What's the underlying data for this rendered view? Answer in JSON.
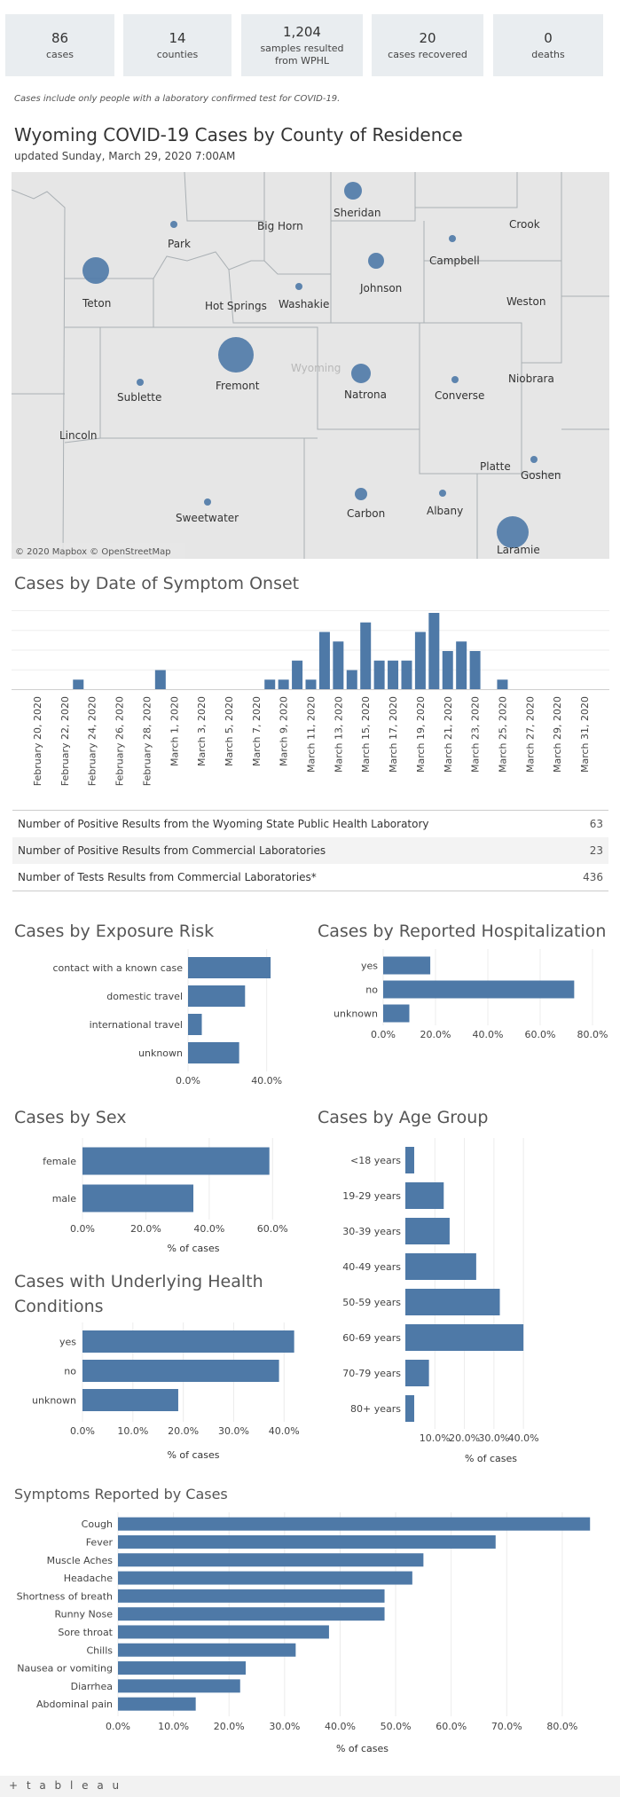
{
  "kpis": [
    {
      "value": "86",
      "label": "cases"
    },
    {
      "value": "14",
      "label": "counties"
    },
    {
      "value": "1,204",
      "label": "samples resulted from WPHL"
    },
    {
      "value": "20",
      "label": "cases recovered"
    },
    {
      "value": "0",
      "label": "deaths"
    }
  ],
  "note": "Cases include only people with a laboratory confirmed test for COVID-19.",
  "title": "Wyoming COVID-19 Cases by County of Residence",
  "updated": "updated Sunday, March 29, 2020 7:00AM",
  "map": {
    "state_label": "Wyoming",
    "attribution": "© 2020 Mapbox © OpenStreetMap",
    "counties": [
      {
        "name": "Sheridan"
      },
      {
        "name": "Crook"
      },
      {
        "name": "Big Horn"
      },
      {
        "name": "Park"
      },
      {
        "name": "Campbell"
      },
      {
        "name": "Johnson"
      },
      {
        "name": "Teton"
      },
      {
        "name": "Hot Springs"
      },
      {
        "name": "Washakie"
      },
      {
        "name": "Weston"
      },
      {
        "name": "Wyoming"
      },
      {
        "name": "Niobrara"
      },
      {
        "name": "Fremont"
      },
      {
        "name": "Natrona"
      },
      {
        "name": "Converse"
      },
      {
        "name": "Sublette"
      },
      {
        "name": "Lincoln"
      },
      {
        "name": "Platte"
      },
      {
        "name": "Goshen"
      },
      {
        "name": "Sweetwater"
      },
      {
        "name": "Carbon"
      },
      {
        "name": "Albany"
      },
      {
        "name": "Laramie"
      }
    ]
  },
  "onset": {
    "title": "Cases by Date of Symptom Onset",
    "labels": [
      "February 20, 2020",
      "February 22, 2020",
      "February 24, 2020",
      "February 26, 2020",
      "February 28, 2020",
      "March 1, 2020",
      "March 3, 2020",
      "March 5, 2020",
      "March 7, 2020",
      "March 9, 2020",
      "March 11, 2020",
      "March 13, 2020",
      "March 15, 2020",
      "March 17, 2020",
      "March 19, 2020",
      "March 21, 2020",
      "March 23, 2020",
      "March 25, 2020",
      "March 27, 2020",
      "March 29, 2020",
      "March 31, 2020"
    ]
  },
  "table": [
    {
      "label": "Number of Positive Results from the Wyoming State Public Health Laboratory",
      "value": "63"
    },
    {
      "label": "Number of Positive Results from Commercial Laboratories",
      "value": "23"
    },
    {
      "label": "Number of Tests Results from Commercial Laboratories*",
      "value": "436"
    }
  ],
  "chart_data": [
    {
      "type": "bar",
      "title": "Cases by Date of Symptom Onset",
      "orientation": "vertical",
      "x": [
        "2020-02-20",
        "2020-02-21",
        "2020-02-22",
        "2020-02-23",
        "2020-02-24",
        "2020-02-25",
        "2020-02-26",
        "2020-02-27",
        "2020-02-28",
        "2020-02-29",
        "2020-03-01",
        "2020-03-02",
        "2020-03-03",
        "2020-03-04",
        "2020-03-05",
        "2020-03-06",
        "2020-03-07",
        "2020-03-08",
        "2020-03-09",
        "2020-03-10",
        "2020-03-11",
        "2020-03-12",
        "2020-03-13",
        "2020-03-14",
        "2020-03-15",
        "2020-03-16",
        "2020-03-17",
        "2020-03-18",
        "2020-03-19",
        "2020-03-20",
        "2020-03-21",
        "2020-03-22",
        "2020-03-23",
        "2020-03-24",
        "2020-03-25",
        "2020-03-26",
        "2020-03-27",
        "2020-03-28",
        "2020-03-29",
        "2020-03-30",
        "2020-03-31"
      ],
      "values": [
        0,
        0,
        0,
        1,
        0,
        0,
        0,
        0,
        0,
        2,
        0,
        0,
        0,
        0,
        0,
        0,
        0,
        1,
        1,
        3,
        1,
        6,
        5,
        2,
        7,
        3,
        3,
        3,
        6,
        8,
        4,
        5,
        4,
        0,
        1,
        0,
        0,
        0,
        0,
        0,
        0
      ],
      "ylim": [
        0,
        8
      ],
      "grid": true
    },
    {
      "type": "bar",
      "title": "Cases by Exposure Risk",
      "orientation": "horizontal",
      "categories": [
        "contact with a known case",
        "domestic travel",
        "international travel",
        "unknown"
      ],
      "values": [
        42,
        29,
        7,
        26
      ],
      "unit": "%",
      "ticks": [
        "0.0%",
        "40.0%"
      ],
      "xlim": [
        0,
        60
      ]
    },
    {
      "type": "bar",
      "title": "Cases by Reported Hospitalization",
      "orientation": "horizontal",
      "categories": [
        "yes",
        "no",
        "unknown"
      ],
      "values": [
        18,
        73,
        10
      ],
      "unit": "%",
      "ticks": [
        "0.0%",
        "20.0%",
        "40.0%",
        "60.0%",
        "80.0%"
      ],
      "xlim": [
        0,
        80
      ]
    },
    {
      "type": "bar",
      "title": "Cases by Sex",
      "orientation": "horizontal",
      "categories": [
        "female",
        "male"
      ],
      "values": [
        59,
        35
      ],
      "unit": "%",
      "xlabel": "% of cases",
      "ticks": [
        "0.0%",
        "20.0%",
        "40.0%",
        "60.0%"
      ],
      "xlim": [
        0,
        70
      ]
    },
    {
      "type": "bar",
      "title": "Cases by Age Group",
      "orientation": "horizontal",
      "categories": [
        "<18 years",
        "19-29 years",
        "30-39 years",
        "40-49 years",
        "50-59 years",
        "60-69 years",
        "70-79 years",
        "80+ years"
      ],
      "values": [
        3,
        13,
        15,
        24,
        32,
        40,
        8,
        3
      ],
      "unit": "%",
      "xlabel": "% of cases",
      "ticks": [
        "10.0%",
        "20.0%",
        "30.0%",
        "40.0%"
      ],
      "xlim": [
        0,
        70
      ]
    },
    {
      "type": "bar",
      "title": "Cases with Underlying Health Conditions",
      "orientation": "horizontal",
      "categories": [
        "yes",
        "no",
        "unknown"
      ],
      "values": [
        42,
        39,
        19
      ],
      "unit": "%",
      "xlabel": "% of cases",
      "ticks": [
        "0.0%",
        "10.0%",
        "20.0%",
        "30.0%",
        "40.0%"
      ],
      "xlim": [
        0,
        44
      ]
    },
    {
      "type": "bar",
      "title": "Symptoms Reported by Cases",
      "orientation": "horizontal",
      "categories": [
        "Cough",
        "Fever",
        "Muscle Aches",
        "Headache",
        "Shortness of breath",
        "Runny Nose",
        "Sore throat",
        "Chills",
        "Nausea or vomiting",
        "Diarrhea",
        "Abdominal pain"
      ],
      "values": [
        85,
        68,
        55,
        53,
        48,
        48,
        38,
        32,
        23,
        22,
        14
      ],
      "unit": "%",
      "xlabel": "% of cases",
      "ticks": [
        "0.0%",
        "10.0%",
        "20.0%",
        "30.0%",
        "40.0%",
        "50.0%",
        "60.0%",
        "70.0%",
        "80.0%"
      ],
      "xlim": [
        0,
        88
      ]
    }
  ],
  "footer": {
    "logo": "+ t a b l e a u"
  },
  "colors": {
    "bar": "#4e79a7",
    "kpi_bg": "#e9edf0",
    "map_bg": "#e6e6e6"
  }
}
